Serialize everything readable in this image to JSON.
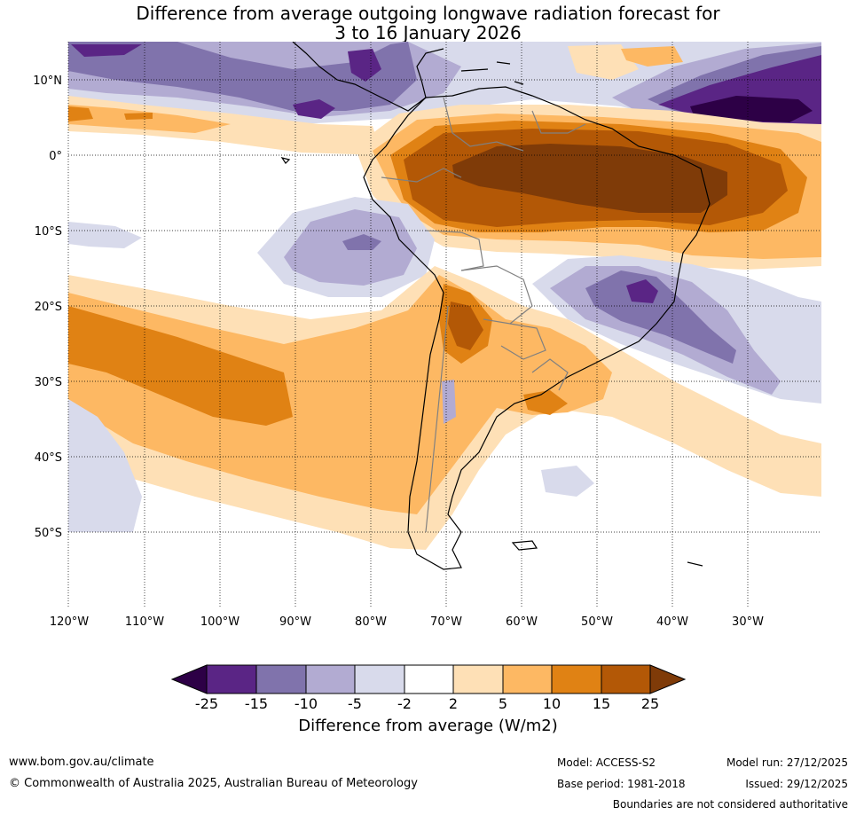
{
  "title": {
    "line1": "Difference from average outgoing longwave radiation forecast for",
    "line2": "3 to 16 January 2026"
  },
  "axes": {
    "lat_labels": [
      "10°N",
      "0°",
      "10°S",
      "20°S",
      "30°S",
      "40°S",
      "50°S"
    ],
    "lon_labels": [
      "120°W",
      "110°W",
      "100°W",
      "90°W",
      "80°W",
      "70°W",
      "60°W",
      "50°W",
      "40°W",
      "30°W"
    ],
    "lon_range": [
      -120,
      -20
    ],
    "lat_range": [
      -60,
      15
    ]
  },
  "colorbar": {
    "title": "Difference from average (W/m2)",
    "tick_labels": [
      "-25",
      "-15",
      "-10",
      "-5",
      "-2",
      "2",
      "5",
      "10",
      "15",
      "25"
    ],
    "colors": [
      "#2d0046",
      "#5a2585",
      "#8073ac",
      "#b2abd2",
      "#d8daeb",
      "#ffffff",
      "#fee0b6",
      "#fdb863",
      "#e08214",
      "#b35806",
      "#7f3b08"
    ]
  },
  "footer": {
    "website": "www.bom.gov.au/climate",
    "copyright": "© Commonwealth of Australia 2025, Australian Bureau of Meteorology",
    "model": "Model: ACCESS-S2",
    "base_period": "Base period: 1981-2018",
    "model_run": "Model run: 27/12/2025",
    "issued": "Issued: 29/12/2025",
    "disclaimer": "Boundaries are not considered authoritative"
  }
}
